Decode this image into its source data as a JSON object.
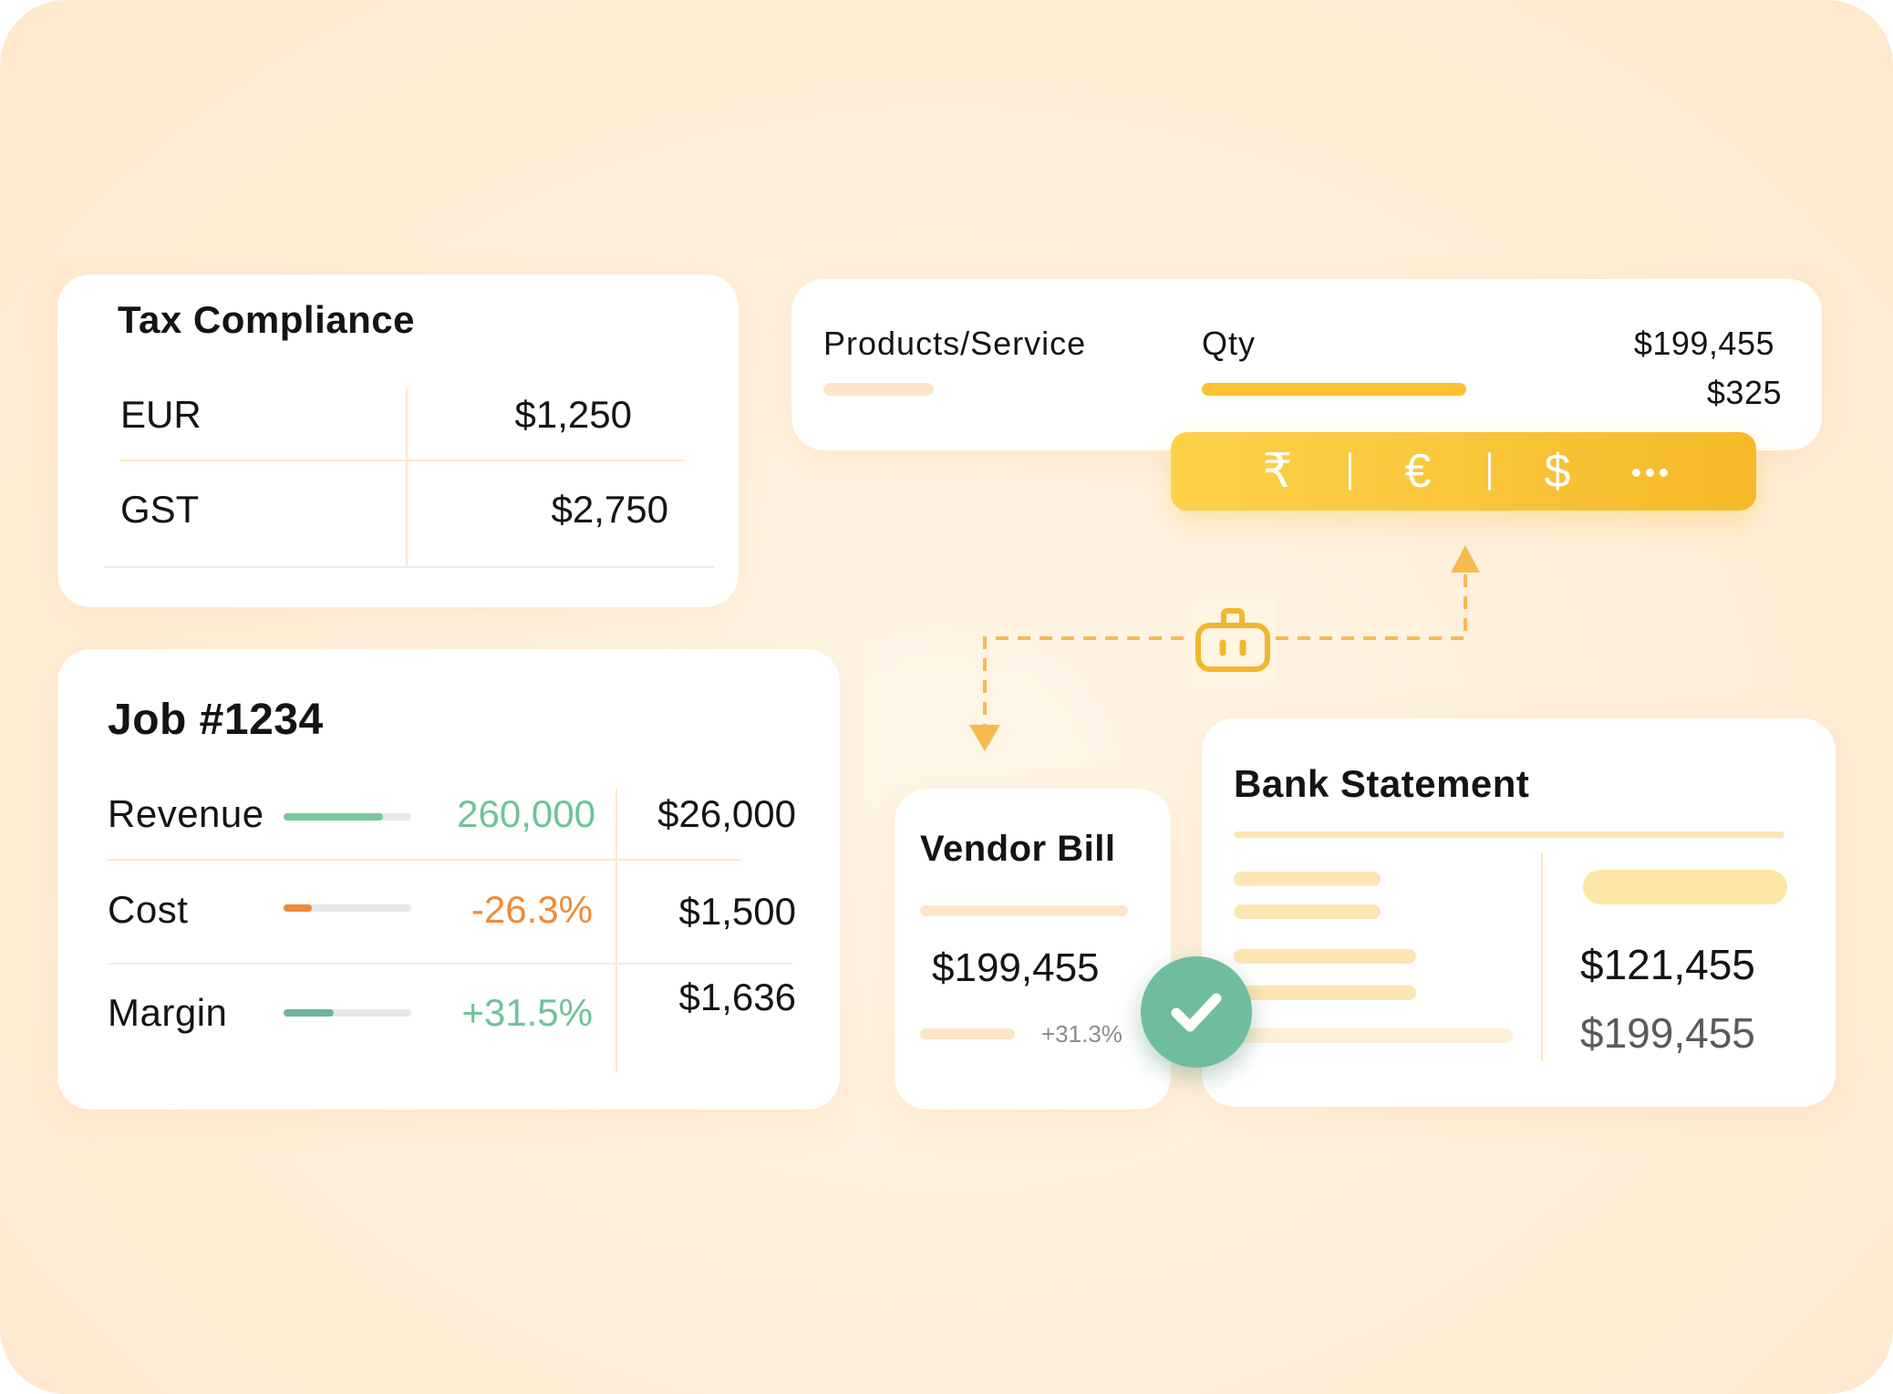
{
  "tax_compliance": {
    "title": "Tax Compliance",
    "rows": [
      {
        "label": "EUR",
        "amount": "$1,250"
      },
      {
        "label": "GST",
        "amount": "$2,750"
      }
    ]
  },
  "products": {
    "col_product": "Products/Service",
    "col_qty": "Qty",
    "amount_1": "$199,455",
    "amount_2": "$325",
    "qty_bar_color": "#f9c22e"
  },
  "currency_bar": {
    "symbols": [
      "₹",
      "€",
      "$"
    ],
    "more_icon": "more-dots-icon"
  },
  "job": {
    "title": "Job #1234",
    "rows": [
      {
        "label": "Revenue",
        "pct": "260,000",
        "amount": "$26,000",
        "bar_fraction": 0.78,
        "color": "#7cc79a"
      },
      {
        "label": "Cost",
        "pct": "-26.3%",
        "amount": "$1,500",
        "bar_fraction": 0.22,
        "color": "#ef8b3a"
      },
      {
        "label": "Margin",
        "pct": "+31.5%",
        "amount": "$1,636",
        "bar_fraction": 0.39,
        "color": "#6fb498"
      }
    ]
  },
  "vendor_bill": {
    "title": "Vendor Bill",
    "amount": "$199,455",
    "change": "+31.3%"
  },
  "bank_statement": {
    "title": "Bank Statement",
    "amount_1": "$121,455",
    "amount_2": "$199,455"
  },
  "colors": {
    "accent_yellow": "#f9c22e",
    "success_green": "#6fbd9c",
    "cost_orange": "#ef8b3a",
    "placeholder": "#fde6b4",
    "background": "#fff0dc"
  },
  "icons": {
    "connector_icon": "robot-icon",
    "check_icon": "check-icon"
  }
}
